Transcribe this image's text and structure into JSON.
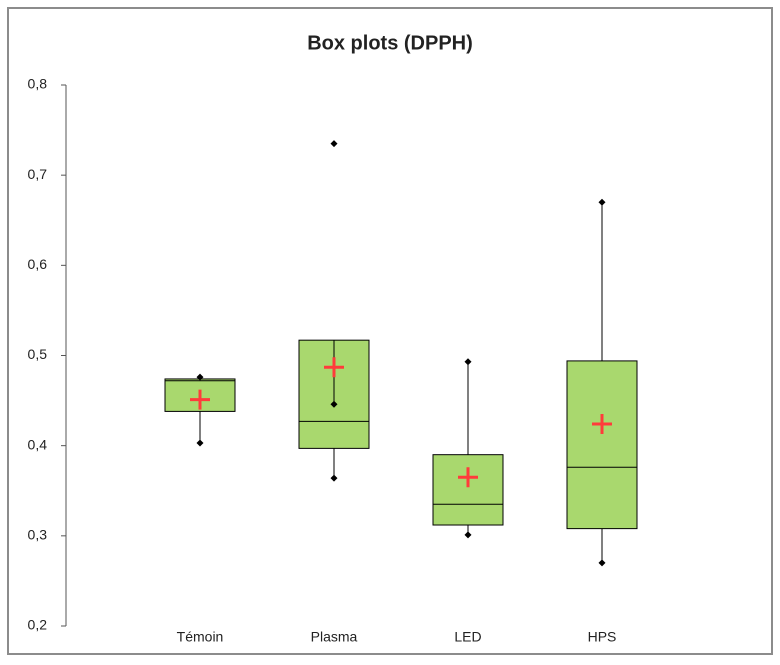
{
  "chart_data": {
    "type": "box",
    "title": "Box plots (DPPH)",
    "categories": [
      "Témoin",
      "Plasma",
      "LED",
      "HPS"
    ],
    "series": [
      {
        "color": "#a9d86e",
        "mean_color": "#ff3b3b",
        "min": [
          0.403,
          0.364,
          0.301,
          0.27
        ],
        "q1": [
          0.438,
          0.397,
          0.312,
          0.308
        ],
        "median": [
          0.472,
          0.427,
          0.335,
          0.376
        ],
        "q3": [
          0.474,
          0.517,
          0.39,
          0.494
        ],
        "max": [
          0.476,
          0.446,
          0.493,
          0.67
        ],
        "mean": [
          0.451,
          0.487,
          0.365,
          0.424
        ],
        "outliers": [
          [],
          [
            0.735
          ],
          [],
          []
        ]
      }
    ],
    "ylim": [
      0.2,
      0.8
    ],
    "yticks": [
      {
        "value": 0.2,
        "label": "0,2"
      },
      {
        "value": 0.3,
        "label": "0,3"
      },
      {
        "value": 0.4,
        "label": "0,4"
      },
      {
        "value": 0.5,
        "label": "0,5"
      },
      {
        "value": 0.6,
        "label": "0,6"
      },
      {
        "value": 0.7,
        "label": "0,7"
      },
      {
        "value": 0.8,
        "label": "0,8"
      }
    ],
    "grid": false
  }
}
